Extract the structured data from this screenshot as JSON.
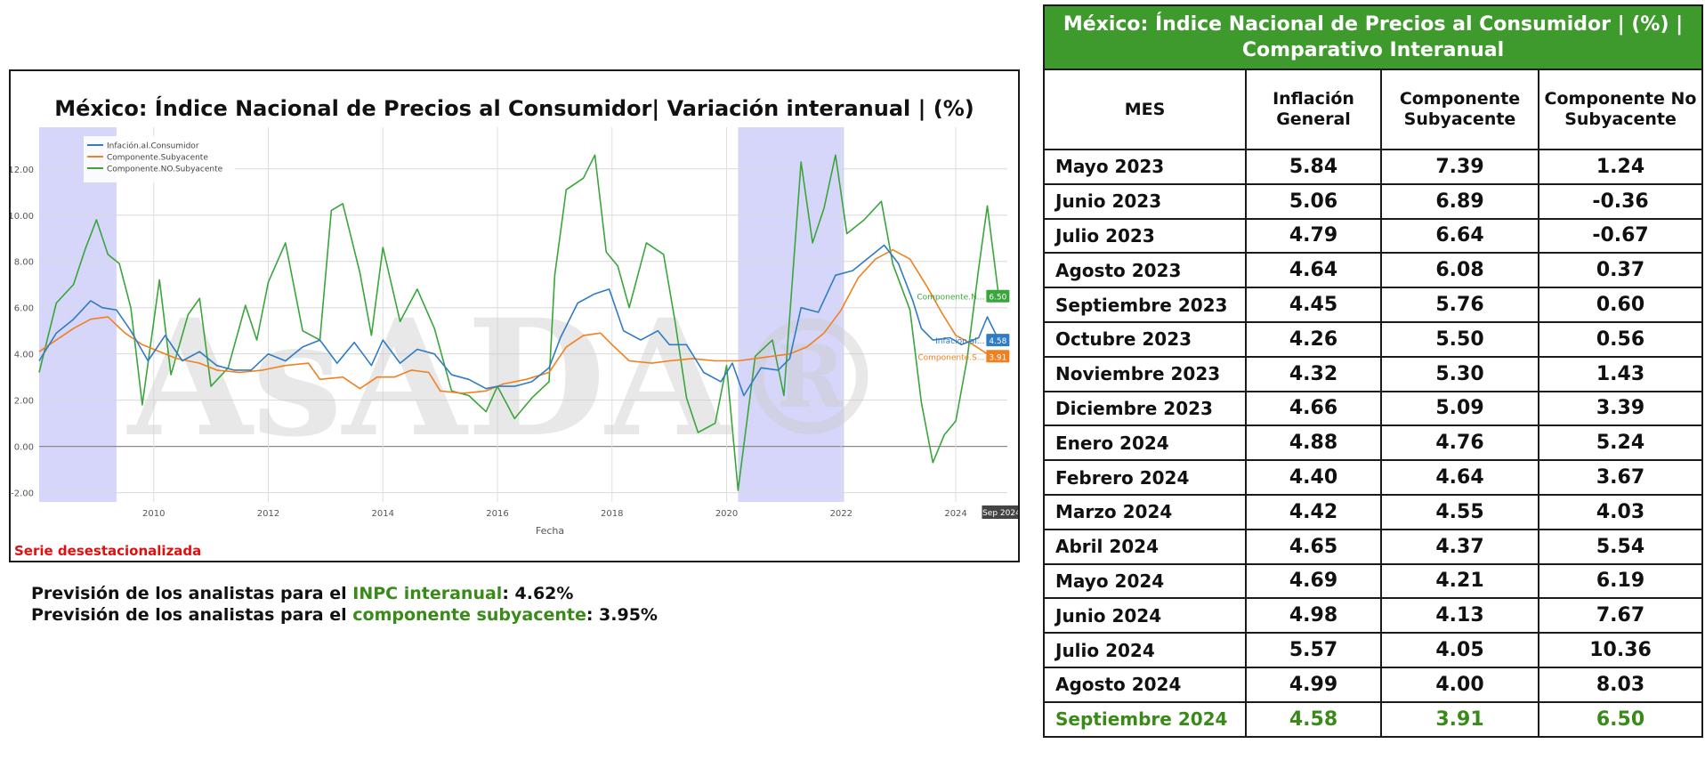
{
  "chart_data": {
    "type": "line",
    "title": "México: Índice Nacional de Precios al Consumidor| Variación interanual | (%)",
    "xlabel": "Fecha",
    "ylabel": "",
    "xlim": [
      2008.0,
      2024.9
    ],
    "ylim": [
      -2.4,
      13.8
    ],
    "y_ticks": [
      -2,
      0,
      2,
      4,
      6,
      8,
      10,
      12
    ],
    "y_tick_labels": [
      "-2.00",
      "0.00",
      "2.00",
      "4.00",
      "6.00",
      "8.00",
      "10.00",
      "12.00"
    ],
    "x_ticks": [
      2010,
      2012,
      2014,
      2016,
      2018,
      2020,
      2022,
      2024
    ],
    "x_tick_labels": [
      "2010",
      "2012",
      "2014",
      "2016",
      "2018",
      "2020",
      "2022",
      "2024"
    ],
    "grid": true,
    "legend_position": "top-left",
    "shaded_regions": [
      [
        2008.0,
        2009.35
      ],
      [
        2020.2,
        2022.05
      ]
    ],
    "cursor_label": "Sep 2024",
    "series": [
      {
        "name": "Infación.al.Consumidor",
        "color": "#2f7bc4",
        "end_label": "Infación.al...",
        "end_value": "4.58",
        "points": [
          [
            2008.0,
            3.7
          ],
          [
            2008.3,
            4.9
          ],
          [
            2008.6,
            5.5
          ],
          [
            2008.9,
            6.3
          ],
          [
            2009.1,
            6.0
          ],
          [
            2009.35,
            5.9
          ],
          [
            2009.6,
            5.0
          ],
          [
            2009.9,
            3.7
          ],
          [
            2010.2,
            4.8
          ],
          [
            2010.5,
            3.7
          ],
          [
            2010.8,
            4.1
          ],
          [
            2011.1,
            3.5
          ],
          [
            2011.4,
            3.3
          ],
          [
            2011.7,
            3.3
          ],
          [
            2012.0,
            4.0
          ],
          [
            2012.3,
            3.7
          ],
          [
            2012.6,
            4.3
          ],
          [
            2012.9,
            4.6
          ],
          [
            2013.2,
            3.6
          ],
          [
            2013.5,
            4.5
          ],
          [
            2013.8,
            3.5
          ],
          [
            2014.0,
            4.6
          ],
          [
            2014.3,
            3.6
          ],
          [
            2014.6,
            4.2
          ],
          [
            2014.9,
            4.0
          ],
          [
            2015.2,
            3.1
          ],
          [
            2015.5,
            2.9
          ],
          [
            2015.8,
            2.5
          ],
          [
            2016.0,
            2.6
          ],
          [
            2016.3,
            2.6
          ],
          [
            2016.6,
            2.8
          ],
          [
            2016.9,
            3.4
          ],
          [
            2017.1,
            4.7
          ],
          [
            2017.4,
            6.2
          ],
          [
            2017.7,
            6.6
          ],
          [
            2017.95,
            6.8
          ],
          [
            2018.2,
            5.0
          ],
          [
            2018.5,
            4.6
          ],
          [
            2018.8,
            5.0
          ],
          [
            2019.0,
            4.4
          ],
          [
            2019.3,
            4.4
          ],
          [
            2019.6,
            3.2
          ],
          [
            2019.9,
            2.8
          ],
          [
            2020.1,
            3.6
          ],
          [
            2020.3,
            2.2
          ],
          [
            2020.6,
            3.4
          ],
          [
            2020.9,
            3.3
          ],
          [
            2021.1,
            3.8
          ],
          [
            2021.3,
            6.0
          ],
          [
            2021.6,
            5.8
          ],
          [
            2021.9,
            7.4
          ],
          [
            2022.2,
            7.6
          ],
          [
            2022.5,
            8.2
          ],
          [
            2022.75,
            8.7
          ],
          [
            2023.0,
            7.9
          ],
          [
            2023.25,
            6.3
          ],
          [
            2023.4,
            5.1
          ],
          [
            2023.6,
            4.6
          ],
          [
            2023.9,
            4.7
          ],
          [
            2024.1,
            4.4
          ],
          [
            2024.4,
            4.7
          ],
          [
            2024.55,
            5.6
          ],
          [
            2024.75,
            4.6
          ]
        ]
      },
      {
        "name": "Componente.Subyacente",
        "color": "#f08020",
        "end_label": "Componente.S...",
        "end_value": "3.91",
        "points": [
          [
            2008.0,
            4.1
          ],
          [
            2008.3,
            4.6
          ],
          [
            2008.6,
            5.1
          ],
          [
            2008.9,
            5.5
          ],
          [
            2009.2,
            5.6
          ],
          [
            2009.5,
            4.9
          ],
          [
            2009.8,
            4.4
          ],
          [
            2010.1,
            4.1
          ],
          [
            2010.4,
            3.8
          ],
          [
            2010.8,
            3.6
          ],
          [
            2011.1,
            3.3
          ],
          [
            2011.5,
            3.2
          ],
          [
            2011.9,
            3.3
          ],
          [
            2012.3,
            3.5
          ],
          [
            2012.7,
            3.6
          ],
          [
            2012.9,
            2.9
          ],
          [
            2013.3,
            3.0
          ],
          [
            2013.6,
            2.5
          ],
          [
            2013.9,
            3.0
          ],
          [
            2014.2,
            3.0
          ],
          [
            2014.5,
            3.3
          ],
          [
            2014.8,
            3.2
          ],
          [
            2015.0,
            2.4
          ],
          [
            2015.4,
            2.3
          ],
          [
            2015.8,
            2.4
          ],
          [
            2016.1,
            2.7
          ],
          [
            2016.5,
            2.9
          ],
          [
            2016.9,
            3.2
          ],
          [
            2017.2,
            4.3
          ],
          [
            2017.5,
            4.8
          ],
          [
            2017.8,
            4.9
          ],
          [
            2018.0,
            4.4
          ],
          [
            2018.3,
            3.7
          ],
          [
            2018.7,
            3.6
          ],
          [
            2019.0,
            3.7
          ],
          [
            2019.4,
            3.8
          ],
          [
            2019.8,
            3.7
          ],
          [
            2020.2,
            3.7
          ],
          [
            2020.5,
            3.8
          ],
          [
            2020.8,
            3.9
          ],
          [
            2021.1,
            4.0
          ],
          [
            2021.4,
            4.3
          ],
          [
            2021.7,
            4.9
          ],
          [
            2022.0,
            5.9
          ],
          [
            2022.3,
            7.3
          ],
          [
            2022.6,
            8.1
          ],
          [
            2022.9,
            8.5
          ],
          [
            2023.2,
            8.1
          ],
          [
            2023.5,
            6.9
          ],
          [
            2023.75,
            5.8
          ],
          [
            2024.0,
            4.8
          ],
          [
            2024.3,
            4.4
          ],
          [
            2024.55,
            4.0
          ],
          [
            2024.75,
            3.9
          ]
        ]
      },
      {
        "name": "Componente.NO.Subyacente",
        "color": "#3aa53a",
        "end_label": "Componente.N...",
        "end_value": "6.50",
        "points": [
          [
            2008.0,
            3.2
          ],
          [
            2008.3,
            6.2
          ],
          [
            2008.6,
            7.0
          ],
          [
            2008.8,
            8.5
          ],
          [
            2009.0,
            9.8
          ],
          [
            2009.2,
            8.3
          ],
          [
            2009.4,
            7.9
          ],
          [
            2009.6,
            6.0
          ],
          [
            2009.8,
            1.8
          ],
          [
            2010.1,
            7.2
          ],
          [
            2010.3,
            3.1
          ],
          [
            2010.6,
            5.7
          ],
          [
            2010.8,
            6.4
          ],
          [
            2011.0,
            2.6
          ],
          [
            2011.3,
            3.4
          ],
          [
            2011.6,
            6.1
          ],
          [
            2011.8,
            4.6
          ],
          [
            2012.0,
            7.1
          ],
          [
            2012.3,
            8.8
          ],
          [
            2012.6,
            5.0
          ],
          [
            2012.9,
            4.6
          ],
          [
            2013.1,
            10.2
          ],
          [
            2013.3,
            10.5
          ],
          [
            2013.6,
            7.5
          ],
          [
            2013.8,
            4.8
          ],
          [
            2014.0,
            8.6
          ],
          [
            2014.3,
            5.4
          ],
          [
            2014.6,
            6.8
          ],
          [
            2014.9,
            5.1
          ],
          [
            2015.2,
            2.4
          ],
          [
            2015.5,
            2.2
          ],
          [
            2015.8,
            1.5
          ],
          [
            2016.0,
            2.6
          ],
          [
            2016.3,
            1.2
          ],
          [
            2016.6,
            2.1
          ],
          [
            2016.9,
            2.8
          ],
          [
            2017.0,
            7.4
          ],
          [
            2017.2,
            11.1
          ],
          [
            2017.5,
            11.6
          ],
          [
            2017.7,
            12.6
          ],
          [
            2017.9,
            8.4
          ],
          [
            2018.1,
            7.8
          ],
          [
            2018.3,
            6.0
          ],
          [
            2018.6,
            8.8
          ],
          [
            2018.9,
            8.3
          ],
          [
            2019.1,
            5.4
          ],
          [
            2019.3,
            2.1
          ],
          [
            2019.5,
            0.6
          ],
          [
            2019.8,
            1.0
          ],
          [
            2020.0,
            3.5
          ],
          [
            2020.2,
            -1.9
          ],
          [
            2020.5,
            3.9
          ],
          [
            2020.8,
            4.6
          ],
          [
            2021.0,
            2.2
          ],
          [
            2021.3,
            12.3
          ],
          [
            2021.5,
            8.8
          ],
          [
            2021.7,
            10.3
          ],
          [
            2021.9,
            12.6
          ],
          [
            2022.1,
            9.2
          ],
          [
            2022.4,
            9.8
          ],
          [
            2022.7,
            10.6
          ],
          [
            2022.9,
            7.9
          ],
          [
            2023.2,
            5.9
          ],
          [
            2023.4,
            1.9
          ],
          [
            2023.6,
            -0.7
          ],
          [
            2023.8,
            0.5
          ],
          [
            2024.0,
            1.1
          ],
          [
            2024.2,
            3.8
          ],
          [
            2024.4,
            7.7
          ],
          [
            2024.55,
            10.4
          ],
          [
            2024.75,
            6.5
          ]
        ]
      }
    ]
  },
  "chart_notes": {
    "serie": "Serie desestacionalizada",
    "watermark": "AsADA®"
  },
  "forecasts": [
    {
      "prefix": "Previsión de los analistas para el ",
      "highlight": "INPC interanual",
      "suffix": ": 4.62%"
    },
    {
      "prefix": "Previsión de los analistas para el ",
      "highlight": "componente subyacente",
      "suffix": ": 3.95%"
    }
  ],
  "table": {
    "title": "México: Índice Nacional de Precios al Consumidor | (%) | Comparativo Interanual",
    "headers": [
      "MES",
      "Inflación General",
      "Componente Subyacente",
      "Componente No Subyacente"
    ],
    "rows": [
      {
        "mes": "Mayo 2023",
        "general": "5.84",
        "subyacente": "7.39",
        "no_subyacente": "1.24"
      },
      {
        "mes": "Junio 2023",
        "general": "5.06",
        "subyacente": "6.89",
        "no_subyacente": "-0.36"
      },
      {
        "mes": "Julio 2023",
        "general": "4.79",
        "subyacente": "6.64",
        "no_subyacente": "-0.67"
      },
      {
        "mes": "Agosto 2023",
        "general": "4.64",
        "subyacente": "6.08",
        "no_subyacente": "0.37"
      },
      {
        "mes": "Septiembre 2023",
        "general": "4.45",
        "subyacente": "5.76",
        "no_subyacente": "0.60"
      },
      {
        "mes": "Octubre 2023",
        "general": "4.26",
        "subyacente": "5.50",
        "no_subyacente": "0.56"
      },
      {
        "mes": "Noviembre 2023",
        "general": "4.32",
        "subyacente": "5.30",
        "no_subyacente": "1.43"
      },
      {
        "mes": "Diciembre 2023",
        "general": "4.66",
        "subyacente": "5.09",
        "no_subyacente": "3.39"
      },
      {
        "mes": "Enero 2024",
        "general": "4.88",
        "subyacente": "4.76",
        "no_subyacente": "5.24"
      },
      {
        "mes": "Febrero 2024",
        "general": "4.40",
        "subyacente": "4.64",
        "no_subyacente": "3.67"
      },
      {
        "mes": "Marzo 2024",
        "general": "4.42",
        "subyacente": "4.55",
        "no_subyacente": "4.03"
      },
      {
        "mes": "Abril 2024",
        "general": "4.65",
        "subyacente": "4.37",
        "no_subyacente": "5.54"
      },
      {
        "mes": "Mayo 2024",
        "general": "4.69",
        "subyacente": "4.21",
        "no_subyacente": "6.19"
      },
      {
        "mes": "Junio 2024",
        "general": "4.98",
        "subyacente": "4.13",
        "no_subyacente": "7.67"
      },
      {
        "mes": "Julio 2024",
        "general": "5.57",
        "subyacente": "4.05",
        "no_subyacente": "10.36"
      },
      {
        "mes": "Agosto 2024",
        "general": "4.99",
        "subyacente": "4.00",
        "no_subyacente": "8.03"
      },
      {
        "mes": "Septiembre 2024",
        "general": "4.58",
        "subyacente": "3.91",
        "no_subyacente": "6.50"
      }
    ]
  }
}
